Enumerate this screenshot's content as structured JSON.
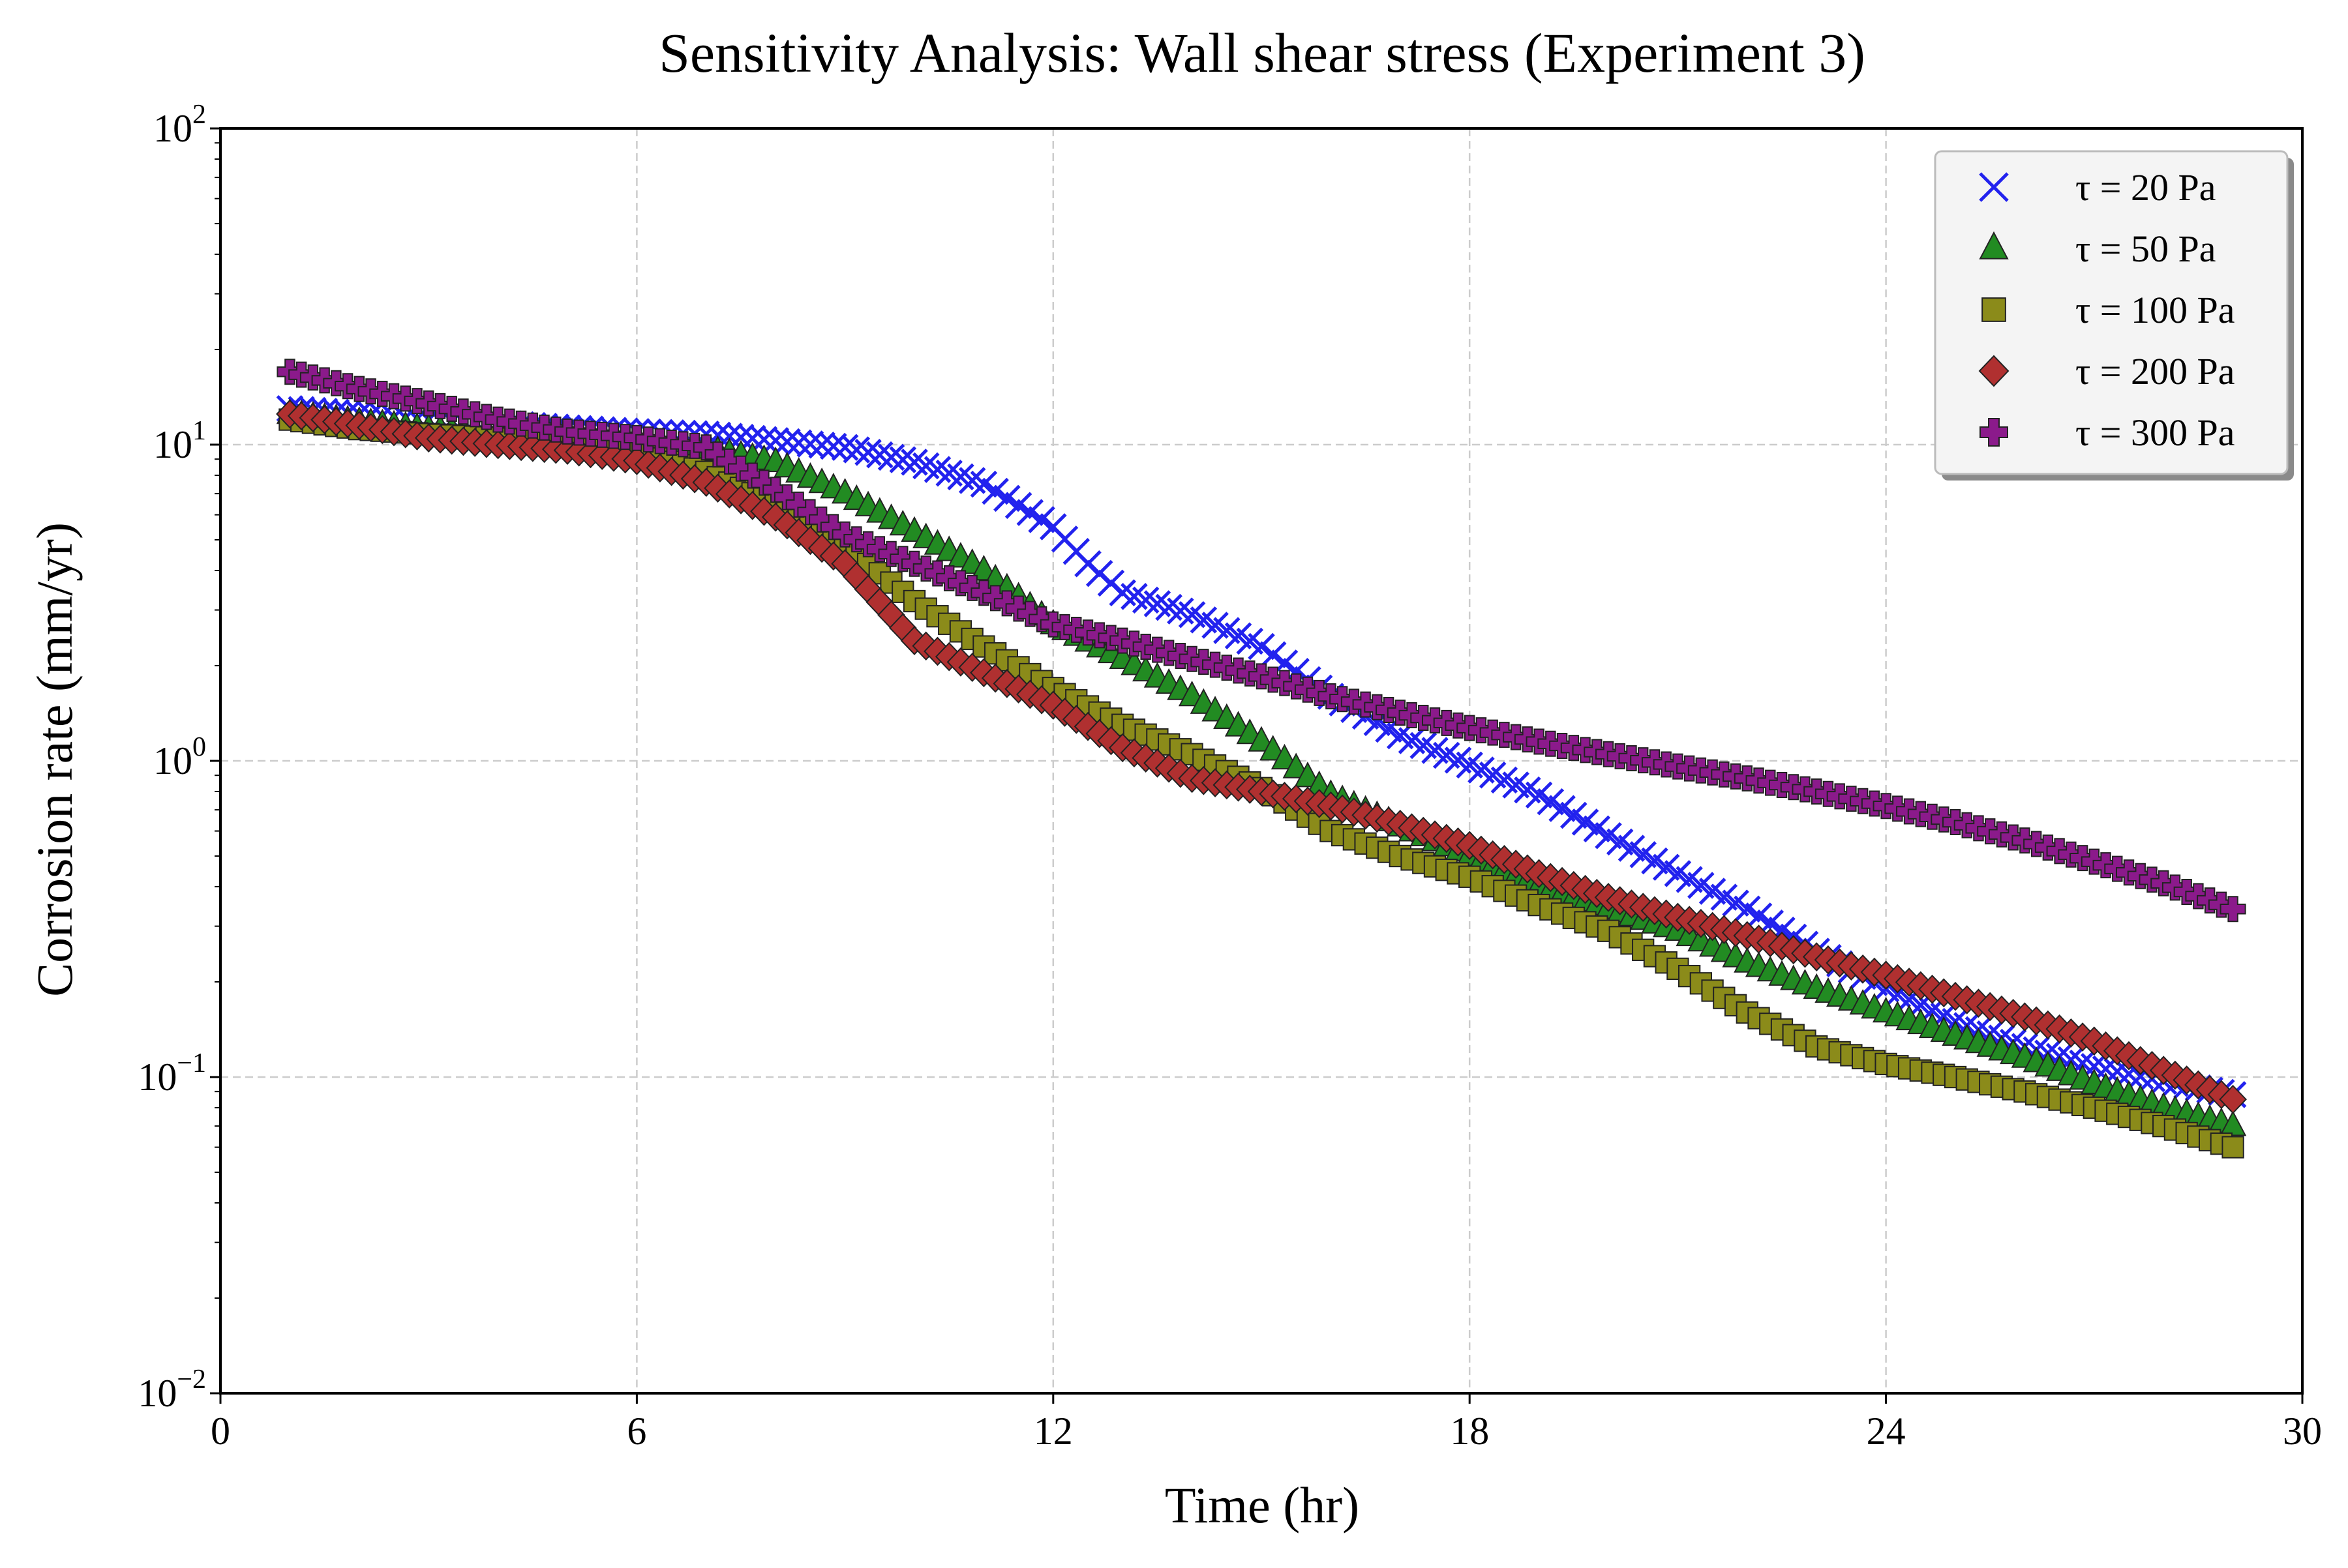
{
  "chart_data": {
    "type": "scatter",
    "title": "Sensitivity Analysis: Wall shear stress (Experiment 3)",
    "xlabel": "Time (hr)",
    "ylabel": "Corrosion rate (mm/yr)",
    "xlim": [
      0,
      30
    ],
    "ylim": [
      0.01,
      100
    ],
    "yscale": "log",
    "xticks": [
      0,
      6,
      12,
      18,
      24,
      30
    ],
    "xtick_labels": [
      "0",
      "6",
      "12",
      "18",
      "24",
      "30"
    ],
    "yticks": [
      0.01,
      0.1,
      1,
      10,
      100
    ],
    "ytick_labels": [
      {
        "base": "10",
        "exp": "−2"
      },
      {
        "base": "10",
        "exp": "−1"
      },
      {
        "base": "10",
        "exp": "0"
      },
      {
        "base": "10",
        "exp": "1"
      },
      {
        "base": "10",
        "exp": "2"
      }
    ],
    "grid": true,
    "legend_position": "top-right",
    "series": [
      {
        "name": "τ = 20 Pa",
        "marker": "x",
        "color": "#2222ee",
        "x": [
          1,
          2,
          3,
          4,
          5,
          6,
          7,
          8,
          9,
          10,
          11,
          12,
          12.5,
          13,
          14,
          15,
          16,
          17,
          18,
          19,
          20,
          21,
          22,
          23,
          24,
          25,
          26,
          27,
          28,
          29
        ],
        "y": [
          13,
          12.5,
          12,
          11.7,
          11.3,
          11,
          10.8,
          10.3,
          9.8,
          8.8,
          7.5,
          5.5,
          4.2,
          3.4,
          2.9,
          2.3,
          1.6,
          1.2,
          0.97,
          0.78,
          0.58,
          0.44,
          0.34,
          0.25,
          0.19,
          0.15,
          0.125,
          0.108,
          0.097,
          0.088
        ]
      },
      {
        "name": "τ = 50 Pa",
        "marker": "triangle",
        "color": "#228b22",
        "x": [
          1,
          2,
          3,
          4,
          5,
          6,
          7,
          8,
          9,
          10,
          11,
          12,
          13,
          14,
          15,
          16,
          17,
          18,
          19,
          20,
          21,
          22,
          23,
          24,
          25,
          26,
          27,
          28,
          29
        ],
        "y": [
          12.5,
          11.8,
          11.2,
          10.8,
          10.4,
          10,
          9.7,
          8.8,
          7,
          5.3,
          4,
          2.7,
          2.1,
          1.6,
          1.15,
          0.78,
          0.62,
          0.5,
          0.4,
          0.34,
          0.29,
          0.23,
          0.19,
          0.16,
          0.135,
          0.115,
          0.095,
          0.08,
          0.07
        ]
      },
      {
        "name": "τ = 100 Pa",
        "marker": "square",
        "color": "#8b8b1a",
        "x": [
          1,
          2,
          3,
          4,
          5,
          6,
          7,
          8,
          9,
          10,
          11,
          12,
          13,
          14,
          15,
          16,
          17,
          18,
          19,
          20,
          21,
          22,
          23,
          24,
          25,
          26,
          27,
          28,
          29
        ],
        "y": [
          12,
          11.2,
          10.8,
          10.5,
          10.2,
          9.5,
          8.2,
          6.5,
          4.8,
          3.2,
          2.3,
          1.7,
          1.3,
          1.05,
          0.82,
          0.6,
          0.5,
          0.43,
          0.35,
          0.29,
          0.22,
          0.16,
          0.125,
          0.11,
          0.1,
          0.09,
          0.08,
          0.07,
          0.06
        ]
      },
      {
        "name": "τ = 200 Pa",
        "marker": "diamond",
        "color": "#b03030",
        "x": [
          1,
          2,
          3,
          4,
          5,
          6,
          7,
          8,
          9,
          10,
          11,
          12,
          13,
          14,
          15,
          16,
          17,
          18,
          19,
          20,
          21,
          22,
          23,
          24,
          25,
          26,
          27,
          28,
          29
        ],
        "y": [
          12.5,
          11.5,
          10.5,
          10,
          9.6,
          8.9,
          7.6,
          5.9,
          4.2,
          2.4,
          1.9,
          1.5,
          1.1,
          0.88,
          0.8,
          0.72,
          0.63,
          0.54,
          0.44,
          0.37,
          0.32,
          0.28,
          0.24,
          0.21,
          0.18,
          0.155,
          0.13,
          0.105,
          0.085
        ]
      },
      {
        "name": "τ = 300 Pa",
        "marker": "plus",
        "color": "#8b1a8b",
        "x": [
          1,
          2,
          3,
          4,
          5,
          6,
          7,
          8,
          9,
          10,
          11,
          12,
          13,
          14,
          15,
          16,
          17,
          18,
          19,
          20,
          21,
          22,
          23,
          24,
          25,
          26,
          27,
          28,
          29
        ],
        "y": [
          17,
          15,
          13.5,
          12,
          11,
          10.5,
          9.8,
          7.2,
          5.2,
          4.2,
          3.4,
          2.7,
          2.4,
          2.1,
          1.85,
          1.6,
          1.42,
          1.27,
          1.15,
          1.05,
          0.96,
          0.88,
          0.8,
          0.72,
          0.64,
          0.56,
          0.48,
          0.41,
          0.34
        ]
      }
    ]
  }
}
